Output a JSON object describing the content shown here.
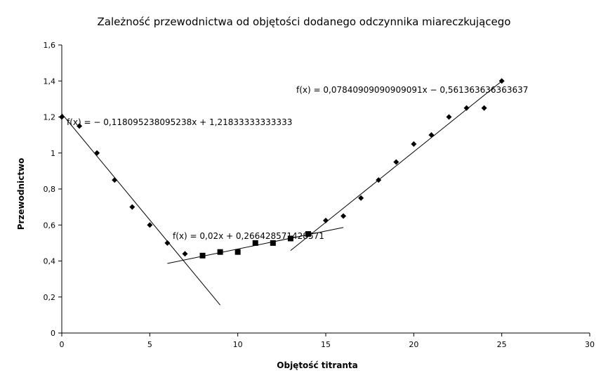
{
  "chart_data": {
    "type": "scatter",
    "title": "Zależność przewodnictwa od objętości dodanego odczynnika miareczkującego",
    "xlabel": "Objętość titranta",
    "ylabel": "Przewodnictwo",
    "xlim": [
      0,
      30
    ],
    "ylim": [
      0,
      1.6
    ],
    "x_ticks": [
      0,
      5,
      10,
      15,
      20,
      25,
      30
    ],
    "y_ticks": [
      0,
      0.2,
      0.4,
      0.6,
      0.8,
      1.0,
      1.2,
      1.4,
      1.6
    ],
    "x_tick_labels": [
      "0",
      "5",
      "10",
      "15",
      "20",
      "25",
      "30"
    ],
    "y_tick_labels": [
      "0",
      "0,2",
      "0,4",
      "0,6",
      "0,8",
      "1",
      "1,2",
      "1,4",
      "1,6"
    ],
    "grid": false,
    "legend": "none",
    "series": [
      {
        "marker": "diamond",
        "points": [
          [
            0,
            1.2
          ],
          [
            1,
            1.15
          ],
          [
            2,
            1.0
          ],
          [
            3,
            0.85
          ],
          [
            4,
            0.7
          ],
          [
            5,
            0.6
          ],
          [
            6,
            0.5
          ],
          [
            7,
            0.44
          ],
          [
            15,
            0.625
          ],
          [
            16,
            0.65
          ],
          [
            17,
            0.75
          ],
          [
            18,
            0.85
          ],
          [
            19,
            0.95
          ],
          [
            20,
            1.05
          ],
          [
            21,
            1.1
          ],
          [
            22,
            1.2
          ],
          [
            23,
            1.25
          ],
          [
            24,
            1.25
          ],
          [
            25,
            1.4
          ]
        ]
      },
      {
        "marker": "square",
        "points": [
          [
            8,
            0.43
          ],
          [
            9,
            0.45
          ],
          [
            10,
            0.45
          ],
          [
            11,
            0.5
          ],
          [
            12,
            0.5
          ],
          [
            13,
            0.525
          ],
          [
            14,
            0.55
          ]
        ]
      }
    ],
    "trendlines": [
      {
        "slope": -0.118095238095238,
        "intercept": 1.21833333333333,
        "x_range": [
          0,
          9
        ],
        "label": "f(x) = − 0,118095238095238x + 1,21833333333333"
      },
      {
        "slope": 0.02,
        "intercept": 0.266428571428571,
        "x_range": [
          6,
          16
        ],
        "label": "f(x) = 0,02x + 0,266428571428571"
      },
      {
        "slope": 0.0784090909090909,
        "intercept": -0.561363636363637,
        "x_range": [
          13,
          25
        ],
        "label": "f(x) = 0,07840909090909091x − 0,561363636363637"
      }
    ]
  }
}
